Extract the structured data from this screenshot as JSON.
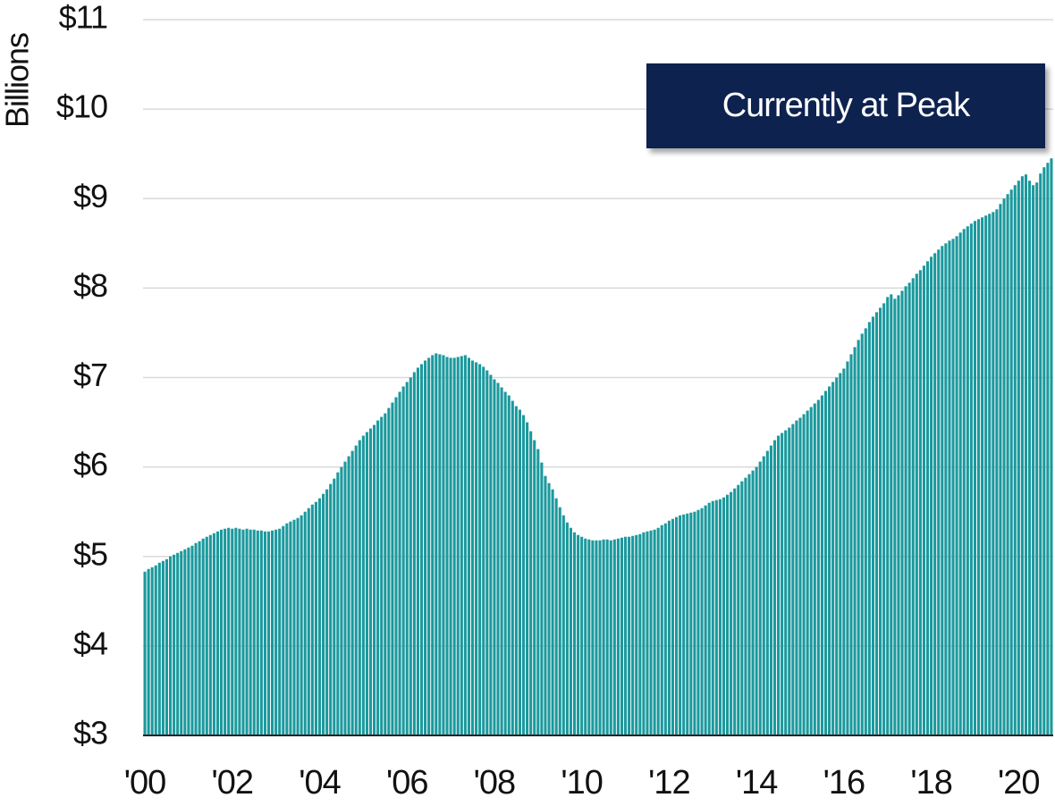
{
  "chart_data": {
    "type": "bar",
    "y_label": "Billions",
    "annotation": "Currently at Peak",
    "color": "#1b999d",
    "grid": true,
    "ylim": [
      3,
      11
    ],
    "yticks": [
      {
        "value": 3,
        "label": "$3"
      },
      {
        "value": 4,
        "label": "$4"
      },
      {
        "value": 5,
        "label": "$5"
      },
      {
        "value": 6,
        "label": "$6"
      },
      {
        "value": 7,
        "label": "$7"
      },
      {
        "value": 8,
        "label": "$8"
      },
      {
        "value": 9,
        "label": "$9"
      },
      {
        "value": 10,
        "label": "$10"
      },
      {
        "value": 11,
        "label": "$11"
      }
    ],
    "categories": [
      "'00",
      null,
      null,
      null,
      null,
      null,
      null,
      null,
      null,
      null,
      null,
      null,
      null,
      null,
      null,
      null,
      null,
      null,
      null,
      null,
      null,
      null,
      null,
      null,
      "'02",
      null,
      null,
      null,
      null,
      null,
      null,
      null,
      null,
      null,
      null,
      null,
      null,
      null,
      null,
      null,
      null,
      null,
      null,
      null,
      null,
      null,
      null,
      null,
      "'04",
      null,
      null,
      null,
      null,
      null,
      null,
      null,
      null,
      null,
      null,
      null,
      null,
      null,
      null,
      null,
      null,
      null,
      null,
      null,
      null,
      null,
      null,
      null,
      "'06",
      null,
      null,
      null,
      null,
      null,
      null,
      null,
      null,
      null,
      null,
      null,
      null,
      null,
      null,
      null,
      null,
      null,
      null,
      null,
      null,
      null,
      null,
      null,
      "'08",
      null,
      null,
      null,
      null,
      null,
      null,
      null,
      null,
      null,
      null,
      null,
      null,
      null,
      null,
      null,
      null,
      null,
      null,
      null,
      null,
      null,
      null,
      null,
      "'10",
      null,
      null,
      null,
      null,
      null,
      null,
      null,
      null,
      null,
      null,
      null,
      null,
      null,
      null,
      null,
      null,
      null,
      null,
      null,
      null,
      null,
      null,
      null,
      "'12",
      null,
      null,
      null,
      null,
      null,
      null,
      null,
      null,
      null,
      null,
      null,
      null,
      null,
      null,
      null,
      null,
      null,
      null,
      null,
      null,
      null,
      null,
      null,
      "'14",
      null,
      null,
      null,
      null,
      null,
      null,
      null,
      null,
      null,
      null,
      null,
      null,
      null,
      null,
      null,
      null,
      null,
      null,
      null,
      null,
      null,
      null,
      null,
      "'16",
      null,
      null,
      null,
      null,
      null,
      null,
      null,
      null,
      null,
      null,
      null,
      null,
      null,
      null,
      null,
      null,
      null,
      null,
      null,
      null,
      null,
      null,
      null,
      "'18",
      null,
      null,
      null,
      null,
      null,
      null,
      null,
      null,
      null,
      null,
      null,
      null,
      null,
      null,
      null,
      null,
      null,
      null,
      null,
      null,
      null,
      null,
      null,
      "'20",
      null,
      null,
      null,
      null,
      null,
      null,
      null,
      null,
      null
    ],
    "values": [
      4.83,
      4.86,
      4.88,
      4.9,
      4.93,
      4.95,
      4.97,
      5.0,
      5.02,
      5.04,
      5.06,
      5.08,
      5.1,
      5.12,
      5.15,
      5.17,
      5.2,
      5.22,
      5.24,
      5.26,
      5.28,
      5.3,
      5.31,
      5.32,
      5.31,
      5.32,
      5.31,
      5.3,
      5.31,
      5.3,
      5.3,
      5.29,
      5.29,
      5.28,
      5.28,
      5.29,
      5.3,
      5.31,
      5.34,
      5.37,
      5.39,
      5.41,
      5.43,
      5.46,
      5.5,
      5.54,
      5.58,
      5.61,
      5.65,
      5.7,
      5.75,
      5.81,
      5.87,
      5.94,
      6.0,
      6.06,
      6.12,
      6.18,
      6.24,
      6.3,
      6.35,
      6.39,
      6.43,
      6.47,
      6.52,
      6.56,
      6.6,
      6.66,
      6.72,
      6.78,
      6.84,
      6.9,
      6.95,
      7.0,
      7.06,
      7.11,
      7.15,
      7.19,
      7.22,
      7.25,
      7.27,
      7.26,
      7.25,
      7.23,
      7.22,
      7.22,
      7.23,
      7.24,
      7.25,
      7.22,
      7.19,
      7.17,
      7.15,
      7.12,
      7.08,
      7.03,
      6.98,
      6.94,
      6.89,
      6.84,
      6.8,
      6.74,
      6.68,
      6.64,
      6.58,
      6.5,
      6.4,
      6.3,
      6.2,
      6.05,
      5.9,
      5.82,
      5.75,
      5.65,
      5.55,
      5.46,
      5.38,
      5.32,
      5.27,
      5.24,
      5.22,
      5.2,
      5.19,
      5.18,
      5.18,
      5.18,
      5.19,
      5.19,
      5.18,
      5.19,
      5.2,
      5.21,
      5.22,
      5.22,
      5.23,
      5.24,
      5.25,
      5.27,
      5.28,
      5.29,
      5.3,
      5.32,
      5.35,
      5.37,
      5.4,
      5.42,
      5.44,
      5.46,
      5.47,
      5.48,
      5.49,
      5.5,
      5.52,
      5.54,
      5.57,
      5.6,
      5.62,
      5.63,
      5.64,
      5.66,
      5.69,
      5.72,
      5.76,
      5.8,
      5.84,
      5.88,
      5.92,
      5.96,
      6.0,
      6.06,
      6.12,
      6.18,
      6.24,
      6.3,
      6.35,
      6.38,
      6.41,
      6.44,
      6.48,
      6.52,
      6.55,
      6.59,
      6.63,
      6.67,
      6.71,
      6.75,
      6.8,
      6.85,
      6.9,
      6.95,
      7.0,
      7.05,
      7.1,
      7.18,
      7.26,
      7.34,
      7.42,
      7.49,
      7.55,
      7.62,
      7.68,
      7.73,
      7.78,
      7.83,
      7.9,
      7.93,
      7.88,
      7.92,
      7.97,
      8.02,
      8.06,
      8.11,
      8.16,
      8.2,
      8.25,
      8.3,
      8.35,
      8.39,
      8.43,
      8.47,
      8.5,
      8.53,
      8.55,
      8.58,
      8.62,
      8.66,
      8.69,
      8.72,
      8.75,
      8.77,
      8.79,
      8.81,
      8.83,
      8.85,
      8.88,
      8.94,
      9.0,
      9.05,
      9.1,
      9.15,
      9.2,
      9.25,
      9.27,
      9.2,
      9.15,
      9.18,
      9.28,
      9.35,
      9.4,
      9.45
    ]
  }
}
